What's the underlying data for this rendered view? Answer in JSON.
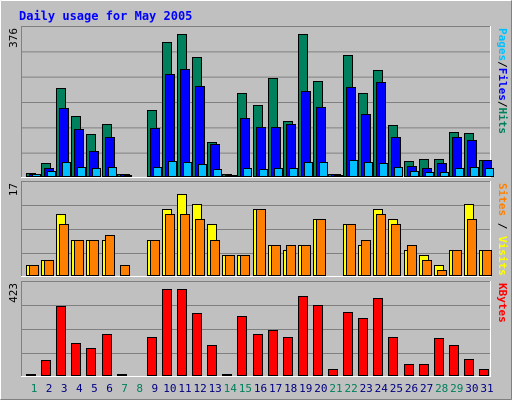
{
  "chart_data": {
    "type": "bar",
    "title": "Daily usage for May 2005",
    "x": [
      "1",
      "2",
      "3",
      "4",
      "5",
      "6",
      "7",
      "8",
      "9",
      "10",
      "11",
      "12",
      "13",
      "14",
      "15",
      "16",
      "17",
      "18",
      "19",
      "20",
      "21",
      "22",
      "23",
      "24",
      "25",
      "26",
      "27",
      "28",
      "29",
      "30",
      "31"
    ],
    "weekend_days": [
      "1",
      "7",
      "8",
      "14",
      "15",
      "21",
      "22",
      "28",
      "29"
    ],
    "colors": {
      "title": "#0000ff",
      "weekday_label": "#000080",
      "weekend_label": "#00805c",
      "hits": "#00805c",
      "files": "#0000ff",
      "pages": "#00c0ff",
      "visits": "#ffff00",
      "sites": "#ff8000",
      "kbytes": "#ff0000"
    },
    "panels": [
      {
        "ymax_label": "376",
        "ymax": 376,
        "side_labels": [
          {
            "text": "Pages",
            "color": "#00c0ff"
          },
          {
            "text": "/",
            "color": "#000000"
          },
          {
            "text": "Files",
            "color": "#0000ff"
          },
          {
            "text": "/",
            "color": "#000000"
          },
          {
            "text": "Hits",
            "color": "#00805c"
          }
        ],
        "series": [
          {
            "name": "Hits",
            "color": "#00805c",
            "values": [
              8,
              34,
              232,
              159,
              110,
              138,
              5,
              0,
              175,
              355,
              376,
              316,
              90,
              4,
              221,
              187,
              260,
              145,
              376,
              251,
              6,
              321,
              219,
              280,
              135,
              40,
              44,
              46,
              116,
              115,
              43
            ]
          },
          {
            "name": "Files",
            "color": "#0000ff",
            "values": [
              5,
              20,
              180,
              125,
              66,
              103,
              4,
              0,
              126,
              270,
              284,
              237,
              84,
              3,
              154,
              131,
              131,
              137,
              224,
              183,
              4,
              235,
              163,
              248,
              103,
              26,
              21,
              34,
              102,
              96,
              42
            ]
          },
          {
            "name": "Pages",
            "color": "#00c0ff",
            "values": [
              4,
              12,
              37,
              23,
              20,
              24,
              3,
              0,
              24,
              39,
              37,
              33,
              18,
              3,
              22,
              19,
              20,
              20,
              38,
              36,
              3,
              42,
              38,
              34,
              25,
              13,
              10,
              10,
              20,
              23,
              20
            ]
          }
        ]
      },
      {
        "ymax_label": "17",
        "ymax": 17,
        "side_labels": [
          {
            "text": "Sites",
            "color": "#ff8000"
          },
          {
            "text": " / ",
            "color": "#000000"
          },
          {
            "text": "Visits",
            "color": "#ffff00"
          }
        ],
        "series": [
          {
            "name": "Visits",
            "color": "#ffff00",
            "values": [
              2,
              3,
              12,
              7,
              7,
              7,
              0,
              0,
              7,
              13,
              16,
              14,
              10,
              4,
              4,
              13,
              6,
              5,
              6,
              11,
              0,
              10,
              6,
              13,
              11,
              5,
              4,
              2,
              5,
              14,
              5
            ]
          },
          {
            "name": "Sites",
            "color": "#ff8000",
            "values": [
              2,
              3,
              10,
              7,
              7,
              8,
              2,
              0,
              7,
              12,
              12,
              11,
              7,
              4,
              4,
              13,
              6,
              6,
              6,
              11,
              0,
              10,
              7,
              12,
              10,
              6,
              3,
              1,
              5,
              11,
              5
            ]
          }
        ]
      },
      {
        "ymax_label": "423",
        "ymax": 423,
        "side_labels": [
          {
            "text": "KBytes",
            "color": "#ff0000"
          }
        ],
        "series": [
          {
            "name": "KBytes",
            "color": "#ff0000",
            "values": [
              5,
              72,
              338,
              159,
              131,
              200,
              4,
              0,
              185,
              423,
              423,
              304,
              150,
              6,
              291,
              200,
              219,
              185,
              388,
              343,
              28,
              312,
              279,
              381,
              185,
              52,
              52,
              181,
              150,
              78,
              30
            ]
          }
        ]
      }
    ]
  }
}
